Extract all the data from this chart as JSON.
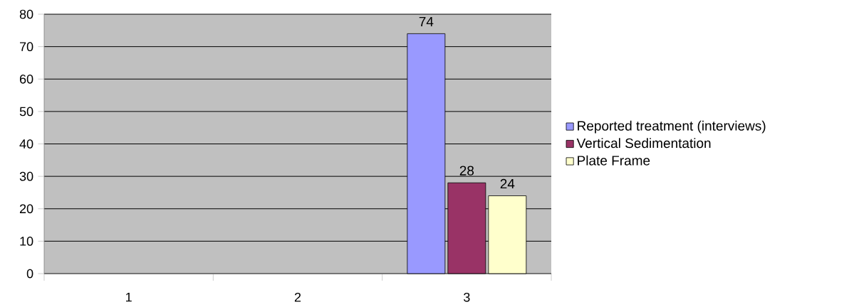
{
  "chart_data": {
    "type": "bar",
    "categories": [
      "1",
      "2",
      "3"
    ],
    "series": [
      {
        "name": "Reported treatment (interviews)",
        "color": "#9999ff",
        "values": [
          null,
          null,
          74
        ]
      },
      {
        "name": "Vertical Sedimentation",
        "color": "#993366",
        "values": [
          null,
          null,
          28
        ]
      },
      {
        "name": "Plate Frame",
        "color": "#ffffcc",
        "values": [
          null,
          null,
          24
        ]
      }
    ],
    "ylim": [
      0,
      80
    ],
    "yticks": [
      0,
      10,
      20,
      30,
      40,
      50,
      60,
      70,
      80
    ],
    "grid": "y",
    "legend": "right",
    "data_labels": true
  }
}
